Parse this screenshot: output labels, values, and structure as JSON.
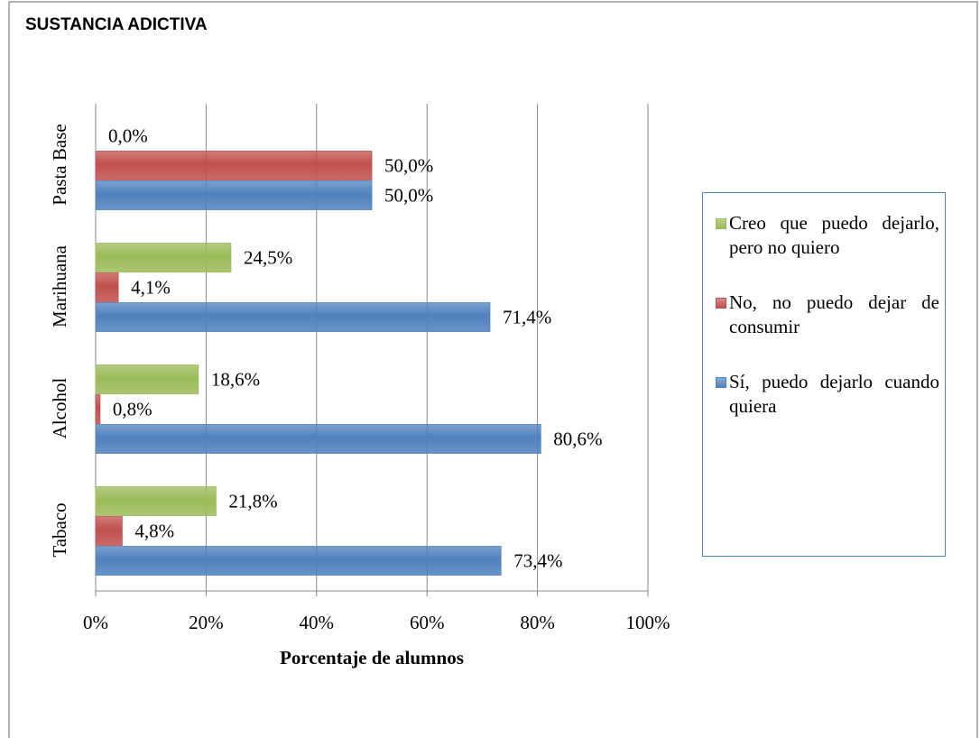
{
  "chart_data": {
    "type": "barh",
    "title": "SUSTANCIA ADICTIVA",
    "xlabel": "Porcentaje de alumnos",
    "categories": [
      "Tabaco",
      "Alcohol",
      "Marihuana",
      "Pasta Base"
    ],
    "series": [
      {
        "name": "Creo que puedo dejarlo, pero no quiero",
        "color": "#9bbb59",
        "values": [
          21.8,
          18.6,
          24.5,
          0.0
        ],
        "value_labels": [
          "21,8%",
          "18,6%",
          "24,5%",
          "0,0%"
        ]
      },
      {
        "name": "No, no puedo dejar de consumir",
        "color": "#c0504d",
        "values": [
          4.8,
          0.8,
          4.1,
          50.0
        ],
        "value_labels": [
          "4,8%",
          "0,8%",
          "4,1%",
          "50,0%"
        ]
      },
      {
        "name": "Sí, puedo dejarlo cuando quiera",
        "color": "#4f81bd",
        "values": [
          73.4,
          80.6,
          71.4,
          50.0
        ],
        "value_labels": [
          "73,4%",
          "80,6%",
          "71,4%",
          "50,0%"
        ]
      }
    ],
    "xlim": [
      0,
      100
    ],
    "xticks": [
      {
        "value": 0,
        "label": "0%"
      },
      {
        "value": 20,
        "label": "20%"
      },
      {
        "value": 40,
        "label": "40%"
      },
      {
        "value": 60,
        "label": "60%"
      },
      {
        "value": 80,
        "label": "80%"
      },
      {
        "value": 100,
        "label": "100%"
      }
    ],
    "grid": true,
    "legend": "right"
  }
}
